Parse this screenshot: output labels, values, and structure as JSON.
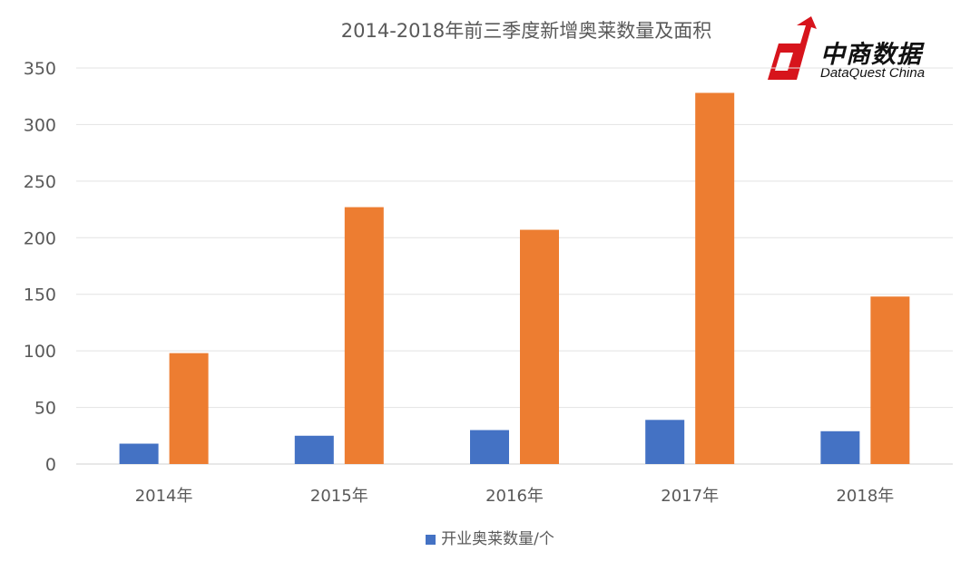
{
  "logo": {
    "cn": "中商数据",
    "en": "DataQuest China"
  },
  "chart_data": {
    "type": "bar",
    "title": "2014-2018年前三季度新增奥莱数量及面积",
    "categories": [
      "2014年",
      "2015年",
      "2016年",
      "2017年",
      "2018年"
    ],
    "series": [
      {
        "name": "开业奥莱数量/个",
        "values": [
          18,
          25,
          30,
          39,
          29
        ],
        "color": "#4472c4"
      },
      {
        "values": [
          98,
          227,
          207,
          328,
          148
        ],
        "color": "#ed7d31"
      }
    ],
    "ylim": [
      0,
      350
    ],
    "yticks": [
      0,
      50,
      100,
      150,
      200,
      250,
      300,
      350
    ],
    "grid": true,
    "legend_position": "bottom"
  }
}
